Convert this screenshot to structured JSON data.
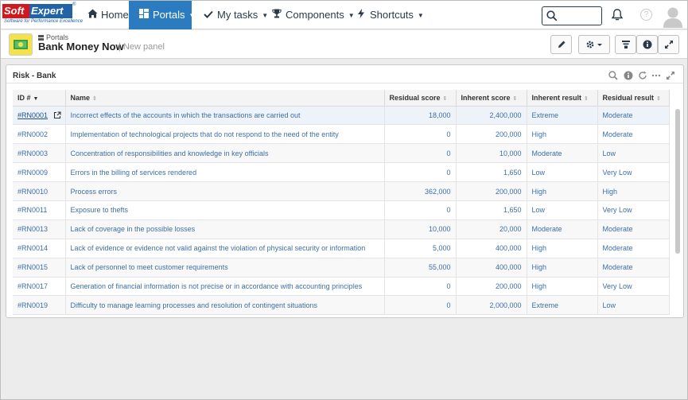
{
  "app": {
    "logo_soft": "Soft",
    "logo_expert": "Expert",
    "logo_tagline": "Software for Performance Excellence"
  },
  "nav": {
    "home": "Home",
    "portals": "Portals",
    "my_tasks": "My tasks",
    "components": "Components",
    "shortcuts": "Shortcuts"
  },
  "search": {
    "placeholder": ""
  },
  "portal": {
    "breadcrumb": "Portals",
    "title": "Bank Money Now",
    "subtitle": "| New panel"
  },
  "widget": {
    "title": "Risk - Bank",
    "columns": [
      "ID #",
      "Name",
      "Residual score",
      "Inherent score",
      "Inherent result",
      "Residual result"
    ],
    "rows": [
      {
        "id": "#RN0001",
        "name": "Incorrect effects of the accounts in which the transactions are carried out",
        "residual_score": "18,000",
        "inherent_score": "2,400,000",
        "inherent_result": "Extreme",
        "residual_result": "Moderate"
      },
      {
        "id": "#RN0002",
        "name": "Implementation of technological projects that do not respond to the need of the entity",
        "residual_score": "0",
        "inherent_score": "200,000",
        "inherent_result": "High",
        "residual_result": "Moderate"
      },
      {
        "id": "#RN0003",
        "name": "Concentration of responsibilities and knowledge in key officials",
        "residual_score": "0",
        "inherent_score": "10,000",
        "inherent_result": "Moderate",
        "residual_result": "Low"
      },
      {
        "id": "#RN0009",
        "name": "Errors in the billing of services rendered",
        "residual_score": "0",
        "inherent_score": "1,650",
        "inherent_result": "Low",
        "residual_result": "Very Low"
      },
      {
        "id": "#RN0010",
        "name": "Process errors",
        "residual_score": "362,000",
        "inherent_score": "200,000",
        "inherent_result": "High",
        "residual_result": "High"
      },
      {
        "id": "#RN0011",
        "name": "Exposure to thefts",
        "residual_score": "0",
        "inherent_score": "1,650",
        "inherent_result": "Low",
        "residual_result": "Very Low"
      },
      {
        "id": "#RN0013",
        "name": "Lack of coverage in the possible losses",
        "residual_score": "10,000",
        "inherent_score": "20,000",
        "inherent_result": "Moderate",
        "residual_result": "Moderate"
      },
      {
        "id": "#RN0014",
        "name": "Lack of evidence or evidence not valid against the violation of physical security or information",
        "residual_score": "5,000",
        "inherent_score": "400,000",
        "inherent_result": "High",
        "residual_result": "Moderate"
      },
      {
        "id": "#RN0015",
        "name": "Lack of personnel to meet customer requirements",
        "residual_score": "55,000",
        "inherent_score": "400,000",
        "inherent_result": "High",
        "residual_result": "Moderate"
      },
      {
        "id": "#RN0017",
        "name": "Generation of financial information is not precise or in accordance with accounting principles",
        "residual_score": "0",
        "inherent_score": "200,000",
        "inherent_result": "High",
        "residual_result": "Very Low"
      },
      {
        "id": "#RN0019",
        "name": "Difficulty to manage learning processes and resolution of contingent situations",
        "residual_score": "0",
        "inherent_score": "2,000,000",
        "inherent_result": "Extreme",
        "residual_result": "Low"
      }
    ]
  },
  "colors": {
    "nav_active": "#2b7bc1",
    "link": "#3c6fa8",
    "logo_red": "#d4161d",
    "logo_blue": "#2063a8"
  }
}
